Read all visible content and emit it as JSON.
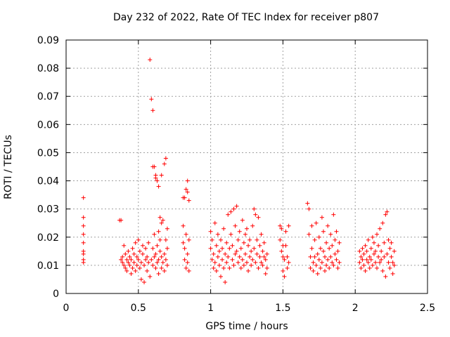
{
  "chart_data": {
    "type": "scatter",
    "title": "Day 232 of 2022, Rate Of TEC Index for receiver p807",
    "xlabel": "GPS time / hours",
    "ylabel": "ROTI / TECUs",
    "xlim": [
      0,
      2.5
    ],
    "ylim": [
      0,
      0.09
    ],
    "xticks": [
      0,
      0.5,
      1,
      1.5,
      2,
      2.5
    ],
    "xtick_labels": [
      "0",
      "0.5",
      "1",
      "1.5",
      "2",
      "2.5"
    ],
    "yticks": [
      0,
      0.01,
      0.02,
      0.03,
      0.04,
      0.05,
      0.06,
      0.07,
      0.08,
      0.09
    ],
    "ytick_labels": [
      "0",
      "0.01",
      "0.02",
      "0.03",
      "0.04",
      "0.05",
      "0.06",
      "0.07",
      "0.08",
      "0.09"
    ],
    "grid": true,
    "marker": "+",
    "color": "#ff0000",
    "series": [
      {
        "name": "ROTI",
        "points": [
          [
            0.12,
            0.034
          ],
          [
            0.12,
            0.027
          ],
          [
            0.12,
            0.024
          ],
          [
            0.12,
            0.021
          ],
          [
            0.12,
            0.018
          ],
          [
            0.12,
            0.015
          ],
          [
            0.12,
            0.014
          ],
          [
            0.12,
            0.012
          ],
          [
            0.12,
            0.011
          ],
          [
            0.37,
            0.026
          ],
          [
            0.38,
            0.026
          ],
          [
            0.38,
            0.012
          ],
          [
            0.39,
            0.011
          ],
          [
            0.39,
            0.013
          ],
          [
            0.4,
            0.01
          ],
          [
            0.4,
            0.017
          ],
          [
            0.41,
            0.009
          ],
          [
            0.41,
            0.014
          ],
          [
            0.42,
            0.012
          ],
          [
            0.42,
            0.008
          ],
          [
            0.43,
            0.011
          ],
          [
            0.43,
            0.015
          ],
          [
            0.44,
            0.01
          ],
          [
            0.44,
            0.013
          ],
          [
            0.45,
            0.007
          ],
          [
            0.45,
            0.012
          ],
          [
            0.46,
            0.009
          ],
          [
            0.46,
            0.016
          ],
          [
            0.47,
            0.011
          ],
          [
            0.47,
            0.014
          ],
          [
            0.48,
            0.008
          ],
          [
            0.48,
            0.018
          ],
          [
            0.49,
            0.01
          ],
          [
            0.49,
            0.013
          ],
          [
            0.5,
            0.012
          ],
          [
            0.5,
            0.019
          ],
          [
            0.51,
            0.009
          ],
          [
            0.51,
            0.015
          ],
          [
            0.52,
            0.005
          ],
          [
            0.52,
            0.011
          ],
          [
            0.53,
            0.014
          ],
          [
            0.53,
            0.017
          ],
          [
            0.54,
            0.004
          ],
          [
            0.54,
            0.01
          ],
          [
            0.55,
            0.012
          ],
          [
            0.55,
            0.016
          ],
          [
            0.56,
            0.008
          ],
          [
            0.56,
            0.013
          ],
          [
            0.57,
            0.011
          ],
          [
            0.57,
            0.018
          ],
          [
            0.58,
            0.083
          ],
          [
            0.59,
            0.069
          ],
          [
            0.6,
            0.065
          ],
          [
            0.6,
            0.045
          ],
          [
            0.61,
            0.045
          ],
          [
            0.62,
            0.041
          ],
          [
            0.62,
            0.042
          ],
          [
            0.63,
            0.04
          ],
          [
            0.64,
            0.038
          ],
          [
            0.66,
            0.042
          ],
          [
            0.58,
            0.006
          ],
          [
            0.59,
            0.012
          ],
          [
            0.6,
            0.01
          ],
          [
            0.6,
            0.016
          ],
          [
            0.61,
            0.013
          ],
          [
            0.61,
            0.021
          ],
          [
            0.62,
            0.009
          ],
          [
            0.62,
            0.014
          ],
          [
            0.63,
            0.011
          ],
          [
            0.63,
            0.017
          ],
          [
            0.64,
            0.007
          ],
          [
            0.64,
            0.012
          ],
          [
            0.65,
            0.015
          ],
          [
            0.65,
            0.019
          ],
          [
            0.66,
            0.009
          ],
          [
            0.66,
            0.013
          ],
          [
            0.67,
            0.011
          ],
          [
            0.67,
            0.026
          ],
          [
            0.68,
            0.046
          ],
          [
            0.69,
            0.048
          ],
          [
            0.68,
            0.008
          ],
          [
            0.68,
            0.014
          ],
          [
            0.69,
            0.012
          ],
          [
            0.69,
            0.019
          ],
          [
            0.7,
            0.01
          ],
          [
            0.7,
            0.016
          ],
          [
            0.7,
            0.023
          ],
          [
            0.65,
            0.027
          ],
          [
            0.66,
            0.025
          ],
          [
            0.64,
            0.022
          ],
          [
            0.82,
            0.034
          ],
          [
            0.83,
            0.037
          ],
          [
            0.84,
            0.04
          ],
          [
            0.85,
            0.033
          ],
          [
            0.84,
            0.036
          ],
          [
            0.81,
            0.034
          ],
          [
            0.81,
            0.024
          ],
          [
            0.81,
            0.018
          ],
          [
            0.82,
            0.016
          ],
          [
            0.82,
            0.012
          ],
          [
            0.83,
            0.021
          ],
          [
            0.83,
            0.009
          ],
          [
            0.84,
            0.014
          ],
          [
            0.84,
            0.011
          ],
          [
            0.85,
            0.019
          ],
          [
            0.85,
            0.008
          ],
          [
            1.0,
            0.022
          ],
          [
            1.0,
            0.016
          ],
          [
            1.01,
            0.012
          ],
          [
            1.01,
            0.019
          ],
          [
            1.02,
            0.009
          ],
          [
            1.02,
            0.014
          ],
          [
            1.03,
            0.025
          ],
          [
            1.03,
            0.011
          ],
          [
            1.04,
            0.017
          ],
          [
            1.04,
            0.008
          ],
          [
            1.05,
            0.021
          ],
          [
            1.05,
            0.013
          ],
          [
            1.06,
            0.015
          ],
          [
            1.06,
            0.01
          ],
          [
            1.07,
            0.019
          ],
          [
            1.07,
            0.006
          ],
          [
            1.08,
            0.012
          ],
          [
            1.08,
            0.016
          ],
          [
            1.09,
            0.009
          ],
          [
            1.09,
            0.023
          ],
          [
            1.1,
            0.014
          ],
          [
            1.1,
            0.004
          ],
          [
            1.11,
            0.018
          ],
          [
            1.11,
            0.011
          ],
          [
            1.12,
            0.028
          ],
          [
            1.12,
            0.013
          ],
          [
            1.13,
            0.016
          ],
          [
            1.13,
            0.009
          ],
          [
            1.14,
            0.029
          ],
          [
            1.14,
            0.021
          ],
          [
            1.15,
            0.012
          ],
          [
            1.15,
            0.017
          ],
          [
            1.16,
            0.03
          ],
          [
            1.16,
            0.01
          ],
          [
            1.17,
            0.014
          ],
          [
            1.17,
            0.024
          ],
          [
            1.18,
            0.031
          ],
          [
            1.18,
            0.015
          ],
          [
            1.19,
            0.011
          ],
          [
            1.19,
            0.019
          ],
          [
            1.2,
            0.013
          ],
          [
            1.2,
            0.022
          ],
          [
            1.21,
            0.009
          ],
          [
            1.21,
            0.016
          ],
          [
            1.22,
            0.026
          ],
          [
            1.22,
            0.012
          ],
          [
            1.23,
            0.018
          ],
          [
            1.23,
            0.01
          ],
          [
            1.24,
            0.014
          ],
          [
            1.24,
            0.021
          ],
          [
            1.25,
            0.023
          ],
          [
            1.25,
            0.011
          ],
          [
            1.26,
            0.017
          ],
          [
            1.26,
            0.008
          ],
          [
            1.27,
            0.013
          ],
          [
            1.27,
            0.019
          ],
          [
            1.28,
            0.015
          ],
          [
            1.28,
            0.01
          ],
          [
            1.29,
            0.024
          ],
          [
            1.29,
            0.012
          ],
          [
            1.3,
            0.03
          ],
          [
            1.3,
            0.016
          ],
          [
            1.31,
            0.028
          ],
          [
            1.31,
            0.011
          ],
          [
            1.32,
            0.014
          ],
          [
            1.32,
            0.019
          ],
          [
            1.33,
            0.027
          ],
          [
            1.33,
            0.009
          ],
          [
            1.34,
            0.013
          ],
          [
            1.34,
            0.017
          ],
          [
            1.35,
            0.021
          ],
          [
            1.35,
            0.011
          ],
          [
            1.36,
            0.015
          ],
          [
            1.36,
            0.01
          ],
          [
            1.37,
            0.018
          ],
          [
            1.37,
            0.013
          ],
          [
            1.38,
            0.012
          ],
          [
            1.38,
            0.007
          ],
          [
            1.39,
            0.014
          ],
          [
            1.39,
            0.009
          ],
          [
            1.48,
            0.024
          ],
          [
            1.48,
            0.019
          ],
          [
            1.49,
            0.023
          ],
          [
            1.49,
            0.015
          ],
          [
            1.5,
            0.013
          ],
          [
            1.5,
            0.017
          ],
          [
            1.5,
            0.008
          ],
          [
            1.51,
            0.006
          ],
          [
            1.51,
            0.012
          ],
          [
            1.52,
            0.022
          ],
          [
            1.52,
            0.017
          ],
          [
            1.53,
            0.013
          ],
          [
            1.53,
            0.009
          ],
          [
            1.54,
            0.024
          ],
          [
            1.54,
            0.011
          ],
          [
            1.67,
            0.032
          ],
          [
            1.68,
            0.03
          ],
          [
            1.68,
            0.021
          ],
          [
            1.69,
            0.013
          ],
          [
            1.69,
            0.009
          ],
          [
            1.7,
            0.024
          ],
          [
            1.7,
            0.016
          ],
          [
            1.71,
            0.011
          ],
          [
            1.71,
            0.008
          ],
          [
            1.72,
            0.019
          ],
          [
            1.72,
            0.013
          ],
          [
            1.73,
            0.025
          ],
          [
            1.73,
            0.01
          ],
          [
            1.74,
            0.014
          ],
          [
            1.74,
            0.007
          ],
          [
            1.75,
            0.02
          ],
          [
            1.75,
            0.012
          ],
          [
            1.76,
            0.016
          ],
          [
            1.76,
            0.009
          ],
          [
            1.77,
            0.027
          ],
          [
            1.77,
            0.011
          ],
          [
            1.78,
            0.022
          ],
          [
            1.78,
            0.015
          ],
          [
            1.79,
            0.013
          ],
          [
            1.79,
            0.008
          ],
          [
            1.8,
            0.018
          ],
          [
            1.8,
            0.01
          ],
          [
            1.81,
            0.024
          ],
          [
            1.81,
            0.012
          ],
          [
            1.82,
            0.016
          ],
          [
            1.82,
            0.009
          ],
          [
            1.83,
            0.021
          ],
          [
            1.83,
            0.013
          ],
          [
            1.84,
            0.011
          ],
          [
            1.84,
            0.017
          ],
          [
            1.85,
            0.028
          ],
          [
            1.85,
            0.01
          ],
          [
            1.86,
            0.019
          ],
          [
            1.86,
            0.014
          ],
          [
            1.87,
            0.012
          ],
          [
            1.87,
            0.022
          ],
          [
            1.88,
            0.009
          ],
          [
            1.88,
            0.015
          ],
          [
            1.89,
            0.018
          ],
          [
            1.89,
            0.011
          ],
          [
            2.03,
            0.015
          ],
          [
            2.03,
            0.011
          ],
          [
            2.04,
            0.013
          ],
          [
            2.04,
            0.009
          ],
          [
            2.05,
            0.016
          ],
          [
            2.05,
            0.012
          ],
          [
            2.06,
            0.01
          ],
          [
            2.06,
            0.014
          ],
          [
            2.07,
            0.017
          ],
          [
            2.07,
            0.008
          ],
          [
            2.08,
            0.012
          ],
          [
            2.08,
            0.015
          ],
          [
            2.09,
            0.011
          ],
          [
            2.09,
            0.019
          ],
          [
            2.1,
            0.013
          ],
          [
            2.1,
            0.009
          ],
          [
            2.11,
            0.016
          ],
          [
            2.11,
            0.012
          ],
          [
            2.12,
            0.02
          ],
          [
            2.12,
            0.01
          ],
          [
            2.13,
            0.014
          ],
          [
            2.13,
            0.018
          ],
          [
            2.14,
            0.011
          ],
          [
            2.14,
            0.015
          ],
          [
            2.15,
            0.021
          ],
          [
            2.15,
            0.009
          ],
          [
            2.16,
            0.013
          ],
          [
            2.16,
            0.017
          ],
          [
            2.17,
            0.023
          ],
          [
            2.17,
            0.011
          ],
          [
            2.18,
            0.015
          ],
          [
            2.18,
            0.012
          ],
          [
            2.19,
            0.025
          ],
          [
            2.19,
            0.008
          ],
          [
            2.2,
            0.018
          ],
          [
            2.2,
            0.013
          ],
          [
            2.21,
            0.028
          ],
          [
            2.21,
            0.006
          ],
          [
            2.22,
            0.029
          ],
          [
            2.22,
            0.014
          ],
          [
            2.23,
            0.019
          ],
          [
            2.23,
            0.011
          ],
          [
            2.24,
            0.016
          ],
          [
            2.24,
            0.009
          ],
          [
            2.25,
            0.013
          ],
          [
            2.25,
            0.018
          ],
          [
            2.26,
            0.011
          ],
          [
            2.26,
            0.007
          ],
          [
            2.27,
            0.015
          ],
          [
            2.27,
            0.01
          ]
        ]
      }
    ]
  }
}
